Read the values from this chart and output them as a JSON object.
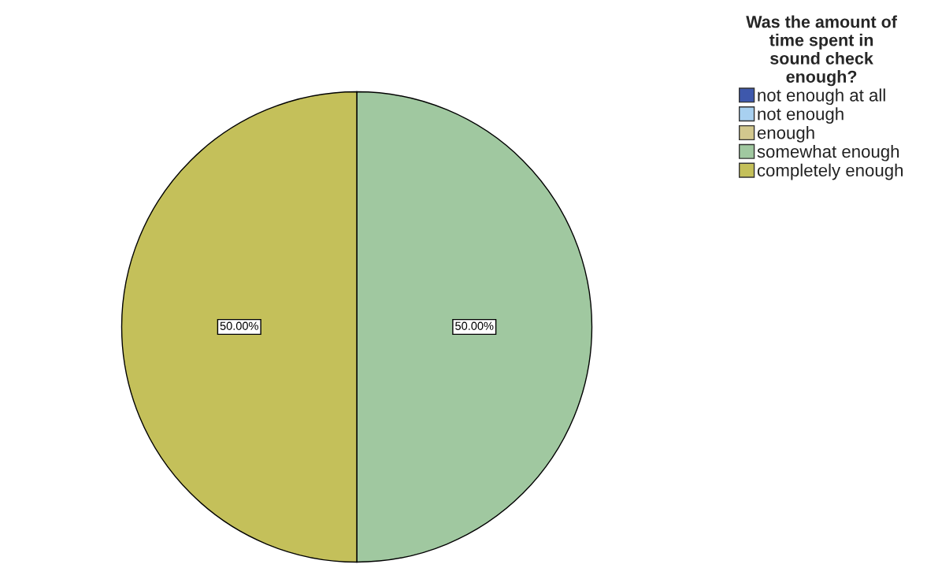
{
  "chart_data": {
    "type": "pie",
    "categories": [
      "not enough at all",
      "not enough",
      "enough",
      "somewhat enough",
      "completely enough"
    ],
    "values": [
      0,
      0,
      0,
      50,
      50
    ],
    "colors": [
      "#3e58ac",
      "#a8d0f0",
      "#d2c88e",
      "#a0c8a0",
      "#c4c05a"
    ],
    "value_labels": [
      null,
      null,
      null,
      "50.00%",
      "50.00%"
    ],
    "legend_title": "Was the amount of\ntime spent in\nsound check\nenough?",
    "legend": "top right"
  }
}
